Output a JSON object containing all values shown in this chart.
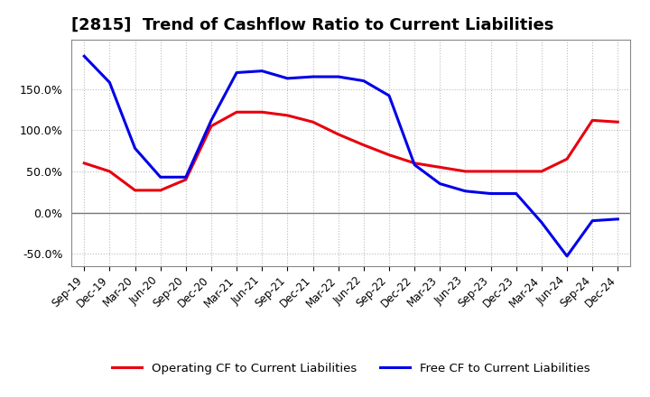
{
  "title": "[2815]  Trend of Cashflow Ratio to Current Liabilities",
  "x_labels": [
    "Sep-19",
    "Dec-19",
    "Mar-20",
    "Jun-20",
    "Sep-20",
    "Dec-20",
    "Mar-21",
    "Jun-21",
    "Sep-21",
    "Dec-21",
    "Mar-22",
    "Jun-22",
    "Sep-22",
    "Dec-22",
    "Mar-23",
    "Jun-23",
    "Sep-23",
    "Dec-23",
    "Mar-24",
    "Jun-24",
    "Sep-24",
    "Dec-24"
  ],
  "operating_cf": [
    0.6,
    0.5,
    0.27,
    0.27,
    0.4,
    1.05,
    1.22,
    1.22,
    1.18,
    1.1,
    0.95,
    0.82,
    0.7,
    0.6,
    0.55,
    0.5,
    0.5,
    0.5,
    0.5,
    0.65,
    1.12,
    1.1
  ],
  "free_cf": [
    1.9,
    1.58,
    0.78,
    0.43,
    0.43,
    1.12,
    1.7,
    1.72,
    1.63,
    1.65,
    1.65,
    1.6,
    1.42,
    0.58,
    0.35,
    0.26,
    0.23,
    0.23,
    -0.12,
    -0.53,
    -0.1,
    -0.08
  ],
  "ylim": [
    -0.65,
    2.1
  ],
  "yticks": [
    -0.5,
    0.0,
    0.5,
    1.0,
    1.5
  ],
  "ytick_labels": [
    "-50.0%",
    "0.0%",
    "50.0%",
    "100.0%",
    "150.0%"
  ],
  "operating_color": "#e8000d",
  "free_color": "#0000e8",
  "background_color": "#ffffff",
  "grid_color": "#bbbbbb",
  "legend_operating": "Operating CF to Current Liabilities",
  "legend_free": "Free CF to Current Liabilities",
  "title_fontsize": 13,
  "tick_fontsize": 8.5,
  "ytick_fontsize": 9
}
